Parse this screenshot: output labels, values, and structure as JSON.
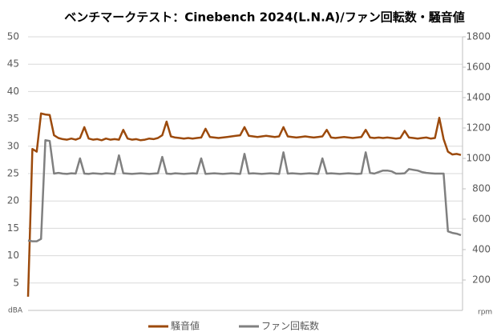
{
  "chart_data": {
    "type": "line",
    "title": "ベンチマークテスト：Cinebench 2024(L.N.A)/ファン回転数・騒音値",
    "y_unit": "dBA",
    "y2_unit": "rpm",
    "ylim": [
      0,
      50
    ],
    "yticks": [
      5,
      10,
      15,
      20,
      25,
      30,
      35,
      40,
      45,
      50
    ],
    "y2lim": [
      0,
      1800
    ],
    "y2ticks": [
      200,
      400,
      600,
      800,
      1000,
      1200,
      1400,
      1600,
      1800
    ],
    "grid": true,
    "series": [
      {
        "name": "騒音値",
        "color": "#9c4a0c",
        "axis": "y",
        "values": [
          2.5,
          29.5,
          29,
          36,
          35.8,
          35.7,
          32,
          31.5,
          31.3,
          31.2,
          31.4,
          31.2,
          31.5,
          33.5,
          31.4,
          31.2,
          31.3,
          31.1,
          31.4,
          31.2,
          31.3,
          31.2,
          33,
          31.4,
          31.2,
          31.3,
          31.1,
          31.2,
          31.4,
          31.3,
          31.5,
          32,
          34.5,
          31.8,
          31.6,
          31.5,
          31.4,
          31.5,
          31.4,
          31.5,
          31.6,
          33.2,
          31.7,
          31.6,
          31.5,
          31.6,
          31.7,
          31.8,
          31.9,
          32,
          33.5,
          31.9,
          31.8,
          31.7,
          31.8,
          31.9,
          31.8,
          31.7,
          31.8,
          33.5,
          31.8,
          31.7,
          31.6,
          31.7,
          31.8,
          31.7,
          31.6,
          31.7,
          31.8,
          33,
          31.6,
          31.5,
          31.6,
          31.7,
          31.6,
          31.5,
          31.6,
          31.7,
          33,
          31.6,
          31.5,
          31.6,
          31.5,
          31.6,
          31.5,
          31.4,
          31.5,
          32.8,
          31.6,
          31.5,
          31.4,
          31.5,
          31.6,
          31.4,
          31.5,
          35.2,
          31.3,
          29,
          28.5,
          28.6,
          28.4
        ]
      },
      {
        "name": "ファン回転数",
        "color": "#808080",
        "axis": "y2",
        "values": [
          460,
          455,
          455,
          470,
          1120,
          1115,
          900,
          905,
          900,
          898,
          902,
          900,
          1000,
          900,
          898,
          902,
          900,
          898,
          902,
          900,
          898,
          1020,
          902,
          900,
          898,
          900,
          902,
          900,
          898,
          900,
          902,
          1010,
          900,
          898,
          902,
          900,
          898,
          900,
          902,
          900,
          1000,
          898,
          900,
          902,
          900,
          898,
          900,
          902,
          900,
          898,
          1030,
          900,
          902,
          900,
          898,
          900,
          902,
          900,
          898,
          1040,
          900,
          902,
          900,
          898,
          900,
          902,
          900,
          898,
          1000,
          900,
          902,
          900,
          898,
          900,
          902,
          900,
          898,
          900,
          1040,
          905,
          900,
          910,
          920,
          920,
          915,
          900,
          900,
          902,
          930,
          925,
          920,
          910,
          905,
          902,
          900,
          900,
          900,
          520,
          510,
          505,
          495
        ]
      }
    ],
    "legend": "bottom"
  }
}
